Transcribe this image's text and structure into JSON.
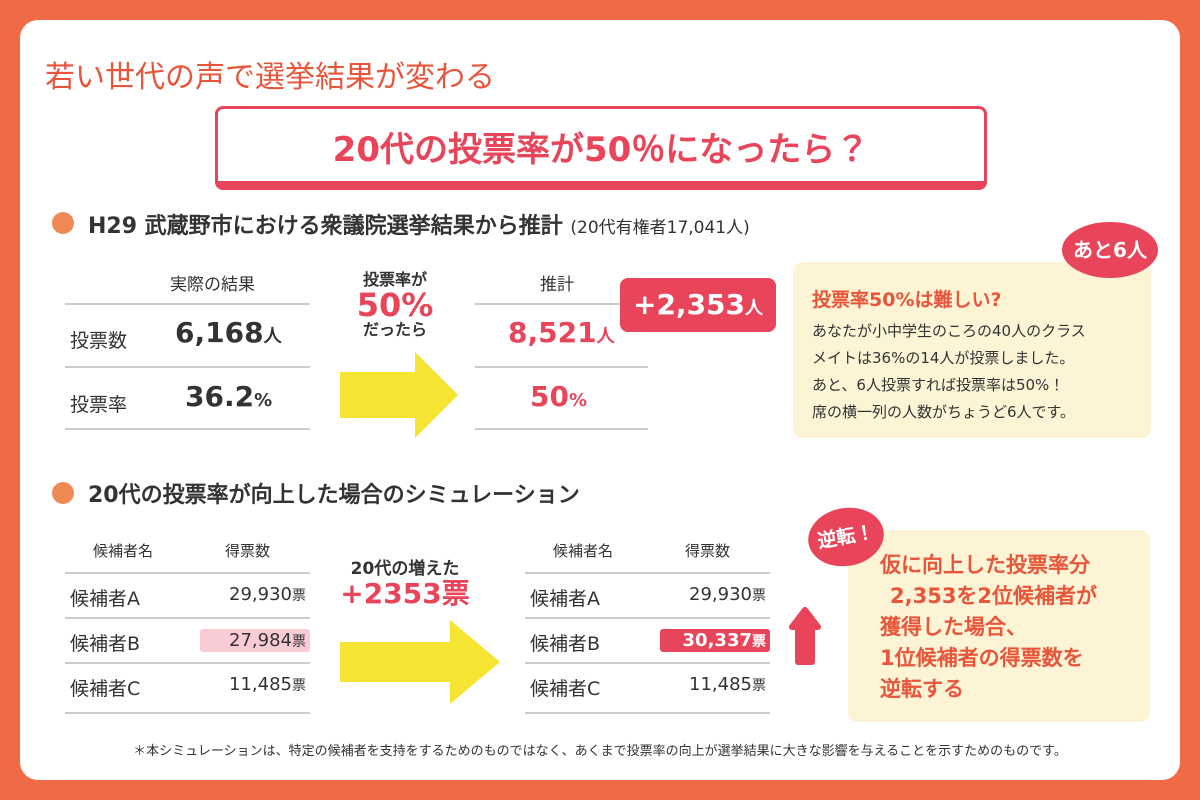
{
  "title": "若い世代の声で選挙結果が変わる",
  "banner": "20代の投票率が50％になったら？",
  "section1": {
    "heading": "H29 武蔵野市における衆議院選挙結果から推計",
    "note": "(20代有権者17,041人)",
    "actual": {
      "header": "実際の結果",
      "rows": [
        {
          "label": "投票数",
          "value": "6,168",
          "unit": "人"
        },
        {
          "label": "投票率",
          "value": "36.2",
          "unit": "%"
        }
      ]
    },
    "arrow": {
      "line1": "投票率が",
      "line2": "50%",
      "line3": "だったら"
    },
    "estimate": {
      "header": "推計",
      "rows": [
        {
          "value": "8,521",
          "unit": "人"
        },
        {
          "value": "50",
          "unit": "%"
        }
      ]
    },
    "badge": {
      "value": "+2,353",
      "unit": "人"
    },
    "callout": {
      "bubble": "あと6人",
      "title": "投票率50%は難しい?",
      "lines": [
        "あなたが小中学生のころの40人のクラス",
        "メイトは36%の14人が投票しました。",
        "あと、6人投票すれば投票率は50%！",
        "席の横一列の人数がちょうど6人です。"
      ]
    }
  },
  "section2": {
    "heading": "20代の投票率が向上した場合のシミュレーション",
    "before": {
      "headers": [
        "候補者名",
        "得票数"
      ],
      "rows": [
        {
          "name": "候補者A",
          "value": "29,930",
          "unit": "票"
        },
        {
          "name": "候補者B",
          "value": "27,984",
          "unit": "票"
        },
        {
          "name": "候補者C",
          "value": "11,485",
          "unit": "票"
        }
      ]
    },
    "arrow": {
      "line1": "20代の増えた",
      "line2": "+2353票"
    },
    "after": {
      "headers": [
        "候補者名",
        "得票数"
      ],
      "rows": [
        {
          "name": "候補者A",
          "value": "29,930",
          "unit": "票"
        },
        {
          "name": "候補者B",
          "value": "30,337",
          "unit": "票"
        },
        {
          "name": "候補者C",
          "value": "11,485",
          "unit": "票"
        }
      ]
    },
    "badge": "逆転！",
    "box": [
      "仮に向上した投票率分",
      "2,353を2位候補者が",
      "獲得した場合、",
      "1位候補者の得票数を",
      "逆転する"
    ]
  },
  "footnote": "＊本シミュレーションは、特定の候補者を支持をするためのものではなく、あくまで投票率の向上が選挙結果に大きな影響を与えることを示すためのものです。"
}
